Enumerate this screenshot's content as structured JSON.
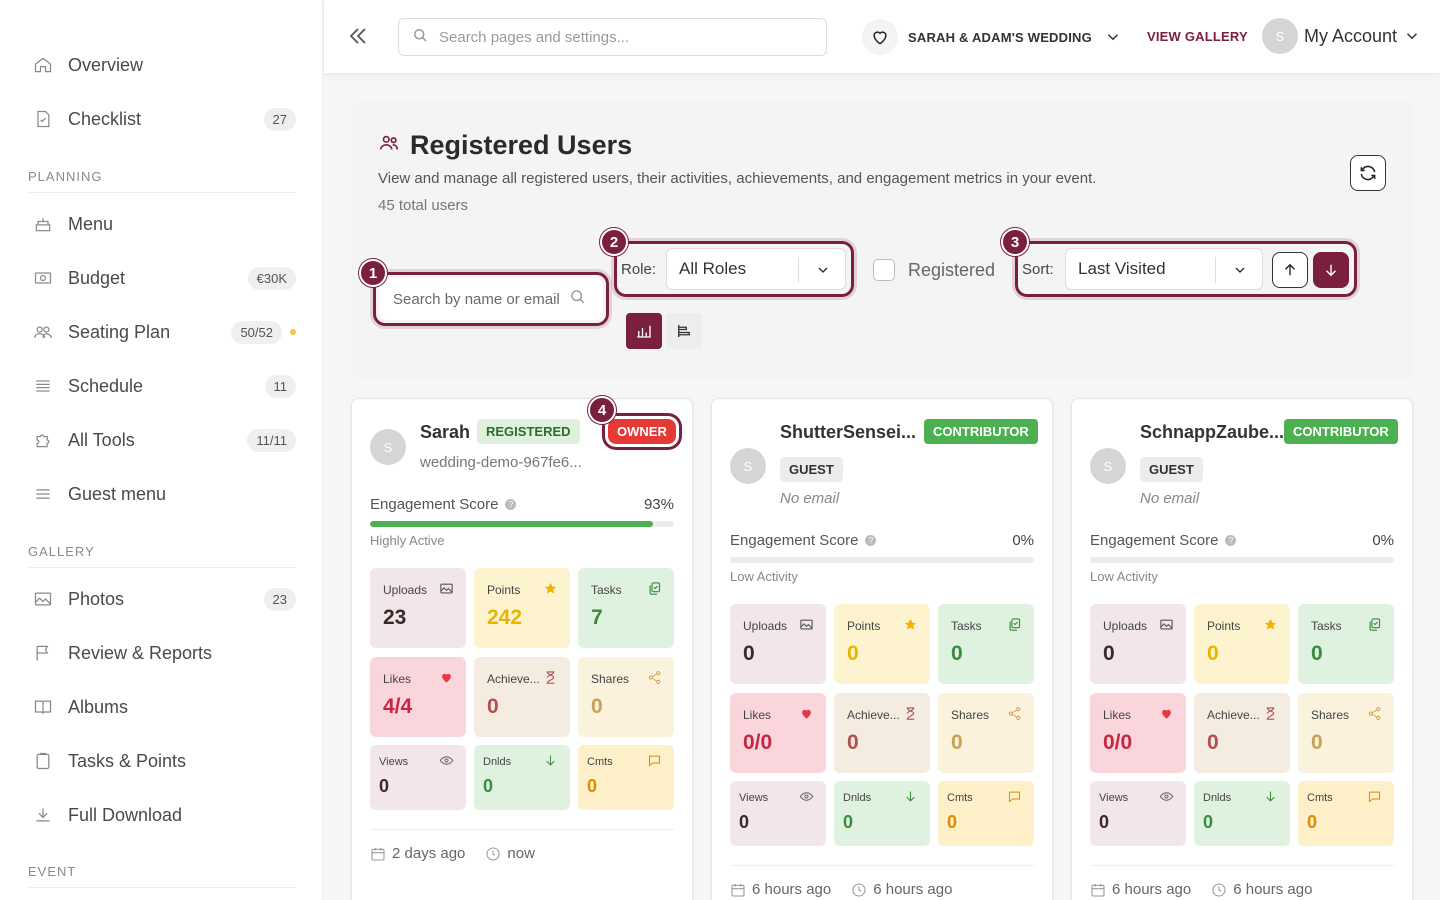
{
  "sidebar": {
    "items_top": [
      {
        "label": "Overview",
        "badge": "",
        "icon": "home-icon"
      },
      {
        "label": "Checklist",
        "badge": "27",
        "icon": "checklist-icon"
      }
    ],
    "section_planning": "PLANNING",
    "planning_items": [
      {
        "label": "Menu",
        "badge": "",
        "icon": "cake-icon"
      },
      {
        "label": "Budget",
        "badge": "€30K",
        "icon": "money-icon"
      },
      {
        "label": "Seating Plan",
        "badge": "50/52",
        "icon": "users-icon",
        "dot": true
      },
      {
        "label": "Schedule",
        "badge": "11",
        "icon": "schedule-icon"
      },
      {
        "label": "All Tools",
        "badge": "11/11",
        "icon": "puzzle-icon"
      },
      {
        "label": "Guest menu",
        "badge": "",
        "icon": "hamburger-icon"
      }
    ],
    "section_gallery": "GALLERY",
    "gallery_items": [
      {
        "label": "Photos",
        "badge": "23",
        "icon": "image-icon"
      },
      {
        "label": "Review & Reports",
        "badge": "",
        "icon": "flag-icon"
      },
      {
        "label": "Albums",
        "badge": "",
        "icon": "book-icon"
      },
      {
        "label": "Tasks & Points",
        "badge": "",
        "icon": "clipboard-icon"
      },
      {
        "label": "Full Download",
        "badge": "",
        "icon": "download-icon"
      }
    ],
    "section_event": "EVENT"
  },
  "header": {
    "search_placeholder": "Search pages and settings...",
    "event_name": "SARAH & ADAM'S WEDDING",
    "view_gallery": "VIEW GALLERY",
    "avatar_letter": "S",
    "account_label": "My Account"
  },
  "panel": {
    "title": "Registered Users",
    "description": "View and manage all registered users, their activities, achievements, and engagement metrics in your event.",
    "count": "45 total users",
    "search_placeholder": "Search by name or email",
    "role_label": "Role:",
    "role_value": "All Roles",
    "registered_label": "Registered",
    "sort_label": "Sort:",
    "sort_value": "Last Visited",
    "callouts": [
      "1",
      "2",
      "3",
      "4"
    ]
  },
  "cards": [
    {
      "avatar": "S",
      "name": "Sarah",
      "role_badge": "REGISTERED",
      "extra_badge": "OWNER",
      "sub": "wedding-demo-967fe6...",
      "engagement_label": "Engagement Score",
      "engagement_value": "93%",
      "engagement_fraction": 0.93,
      "activity": "Highly Active",
      "stats": {
        "uploads_label": "Uploads",
        "uploads": "23",
        "points_label": "Points",
        "points": "242",
        "tasks_label": "Tasks",
        "tasks": "7",
        "likes_label": "Likes",
        "likes": "4/4",
        "achieve_label": "Achieve...",
        "achieve": "0",
        "shares_label": "Shares",
        "shares": "0",
        "views_label": "Views",
        "views": "0",
        "dnlds_label": "Dnlds",
        "dnlds": "0",
        "cmts_label": "Cmts",
        "cmts": "0"
      },
      "joined": "2 days ago",
      "last_seen": "now"
    },
    {
      "avatar": "S",
      "name": "ShutterSensei...",
      "role_badge": "CONTRIBUTOR",
      "guest_badge": "GUEST",
      "sub": "No email",
      "engagement_label": "Engagement Score",
      "engagement_value": "0%",
      "engagement_fraction": 0,
      "activity": "Low Activity",
      "stats": {
        "uploads_label": "Uploads",
        "uploads": "0",
        "points_label": "Points",
        "points": "0",
        "tasks_label": "Tasks",
        "tasks": "0",
        "likes_label": "Likes",
        "likes": "0/0",
        "achieve_label": "Achieve...",
        "achieve": "0",
        "shares_label": "Shares",
        "shares": "0",
        "views_label": "Views",
        "views": "0",
        "dnlds_label": "Dnlds",
        "dnlds": "0",
        "cmts_label": "Cmts",
        "cmts": "0"
      },
      "joined": "6 hours ago",
      "last_seen": "6 hours ago"
    },
    {
      "avatar": "S",
      "name": "SchnappZaube...",
      "role_badge": "CONTRIBUTOR",
      "guest_badge": "GUEST",
      "sub": "No email",
      "engagement_label": "Engagement Score",
      "engagement_value": "0%",
      "engagement_fraction": 0,
      "activity": "Low Activity",
      "stats": {
        "uploads_label": "Uploads",
        "uploads": "0",
        "points_label": "Points",
        "points": "0",
        "tasks_label": "Tasks",
        "tasks": "0",
        "likes_label": "Likes",
        "likes": "0/0",
        "achieve_label": "Achieve...",
        "achieve": "0",
        "shares_label": "Shares",
        "shares": "0",
        "views_label": "Views",
        "views": "0",
        "dnlds_label": "Dnlds",
        "dnlds": "0",
        "cmts_label": "Cmts",
        "cmts": "0"
      },
      "joined": "6 hours ago",
      "last_seen": "6 hours ago"
    }
  ],
  "colors": {
    "brand": "#7a1f3d",
    "success": "#4caf50",
    "owner": "#e53935",
    "points": "#e8b400",
    "likes": "#c62844",
    "achieve": "#b05050",
    "tasks": "#3b8a3e",
    "cmts": "#e08a00"
  }
}
